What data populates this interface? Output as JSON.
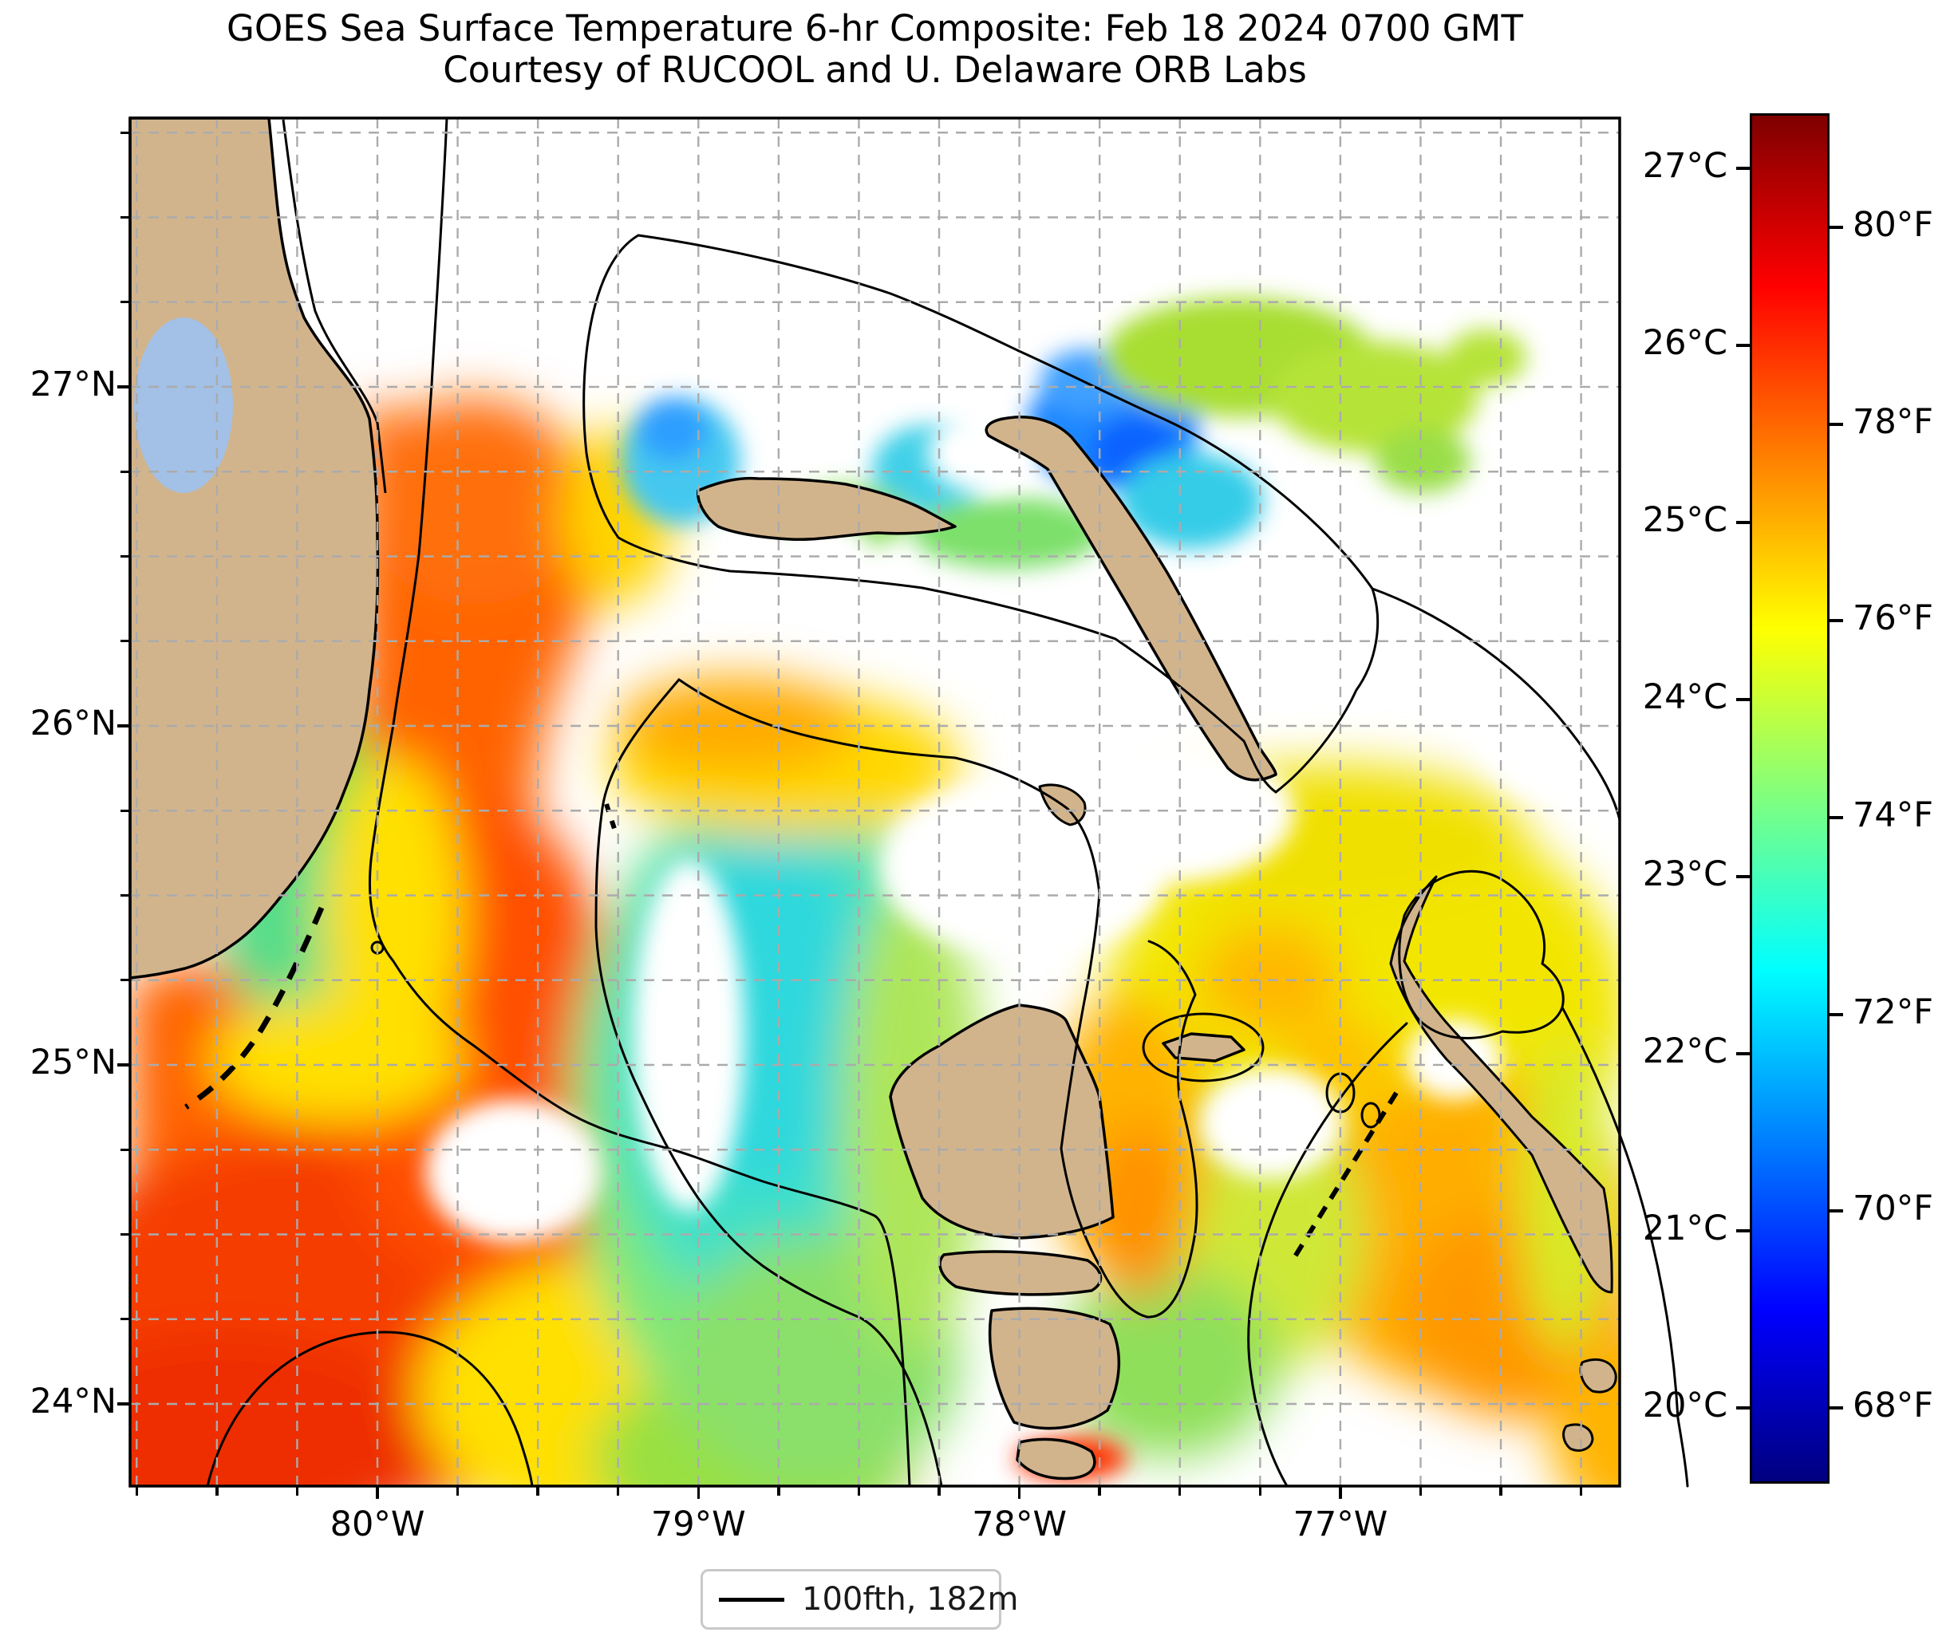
{
  "title": {
    "line1": "GOES Sea Surface Temperature 6-hr Composite: Feb 18 2024 0700 GMT",
    "line2": "Courtesy of RUCOOL and U. Delaware ORB Labs"
  },
  "axes": {
    "x_ticks": [
      {
        "label": "80°W",
        "deg": 80
      },
      {
        "label": "79°W",
        "deg": 79
      },
      {
        "label": "78°W",
        "deg": 78
      },
      {
        "label": "77°W",
        "deg": 77
      }
    ],
    "y_ticks": [
      {
        "label": "27°N",
        "deg": 27
      },
      {
        "label": "26°N",
        "deg": 26
      },
      {
        "label": "25°N",
        "deg": 25
      },
      {
        "label": "24°N",
        "deg": 24
      }
    ]
  },
  "colorbar": {
    "colormap": "jet",
    "celsius_labels": [
      {
        "label": "27°C",
        "value": 27
      },
      {
        "label": "26°C",
        "value": 26
      },
      {
        "label": "25°C",
        "value": 25
      },
      {
        "label": "24°C",
        "value": 24
      },
      {
        "label": "23°C",
        "value": 23
      },
      {
        "label": "22°C",
        "value": 22
      },
      {
        "label": "21°C",
        "value": 21
      },
      {
        "label": "20°C",
        "value": 20
      }
    ],
    "fahrenheit_labels": [
      {
        "label": "80°F",
        "value_c": 26.6667
      },
      {
        "label": "78°F",
        "value_c": 25.5556
      },
      {
        "label": "76°F",
        "value_c": 24.4444
      },
      {
        "label": "74°F",
        "value_c": 23.3333
      },
      {
        "label": "72°F",
        "value_c": 22.2222
      },
      {
        "label": "70°F",
        "value_c": 21.1111
      },
      {
        "label": "68°F",
        "value_c": 20
      }
    ]
  },
  "legend": {
    "items": [
      {
        "label": "100fth, 182m",
        "swatch": "black-line"
      }
    ]
  },
  "chart_data": {
    "type": "heatmap",
    "title": "GOES Sea Surface Temperature 6-hr Composite: Feb 18 2024 0700 GMT",
    "subtitle": "Courtesy of RUCOOL and U. Delaware ORB Labs",
    "x_tick_labels": [
      "80°W",
      "79°W",
      "78°W",
      "77°W"
    ],
    "y_tick_labels": [
      "27°N",
      "26°N",
      "25°N",
      "24°N"
    ],
    "colorbar_celsius_ticks": [
      "27°C",
      "26°C",
      "25°C",
      "24°C",
      "23°C",
      "22°C",
      "21°C",
      "20°C"
    ],
    "colorbar_fahrenheit_ticks": [
      "80°F",
      "78°F",
      "76°F",
      "74°F",
      "72°F",
      "70°F",
      "68°F"
    ],
    "colormap": "jet",
    "legend_entries": [
      "100fth, 182m"
    ],
    "grid": "0.25-degree dashed graticule",
    "land_color": "#d2b48c",
    "lake_color": "#a3c0e6",
    "no_data_color": "#ffffff"
  },
  "colors": {
    "land": "#d2b48c",
    "lake": "#a3c0e6",
    "grid": "#ababab",
    "contour": "#000000"
  }
}
